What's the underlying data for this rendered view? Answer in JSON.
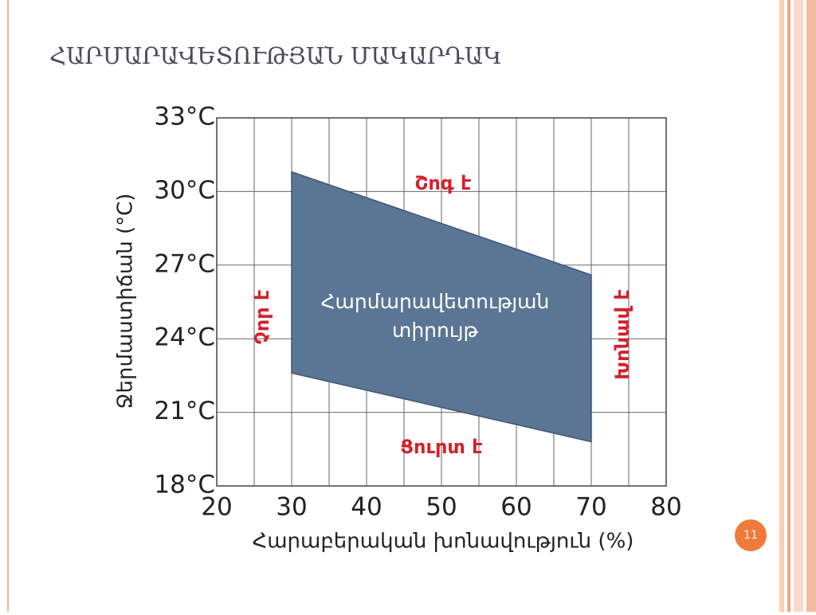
{
  "slide": {
    "title": "ՀԱՐՄԱՐԱՎԵՏՈՒԹՅԱՆ ՄԱԿԱՐԴԱԿ",
    "page_number": "11"
  },
  "chart_data": {
    "type": "range",
    "xlabel": "Հարաբերական խոնավություն (%)",
    "ylabel": "Ջերմաստիճան (°C)",
    "xlim": [
      20,
      80
    ],
    "xticks": [
      20,
      30,
      40,
      50,
      60,
      70,
      80
    ],
    "x_minor_ticks": [
      25,
      35,
      45,
      55,
      65,
      75
    ],
    "ylim": [
      18,
      33
    ],
    "yticks": [
      {
        "value": 18,
        "label": "18°C"
      },
      {
        "value": 21,
        "label": "21°C"
      },
      {
        "value": 24,
        "label": "24°C"
      },
      {
        "value": 27,
        "label": "27°C"
      },
      {
        "value": 30,
        "label": "30°C"
      },
      {
        "value": 33,
        "label": "33°C"
      }
    ],
    "grid": true,
    "series": [
      {
        "name_lines": [
          "Հարմարավետության",
          "տիրույթ"
        ],
        "color": "#5b7595",
        "x": [
          30,
          70
        ],
        "upper": [
          30.8,
          26.6
        ],
        "lower": [
          22.6,
          19.8
        ]
      }
    ],
    "annotations": [
      "Շոգ է",
      "Ցուրտ է",
      "Չոր է",
      "Խոնավ է"
    ],
    "annotation_color": "#d4202c"
  }
}
